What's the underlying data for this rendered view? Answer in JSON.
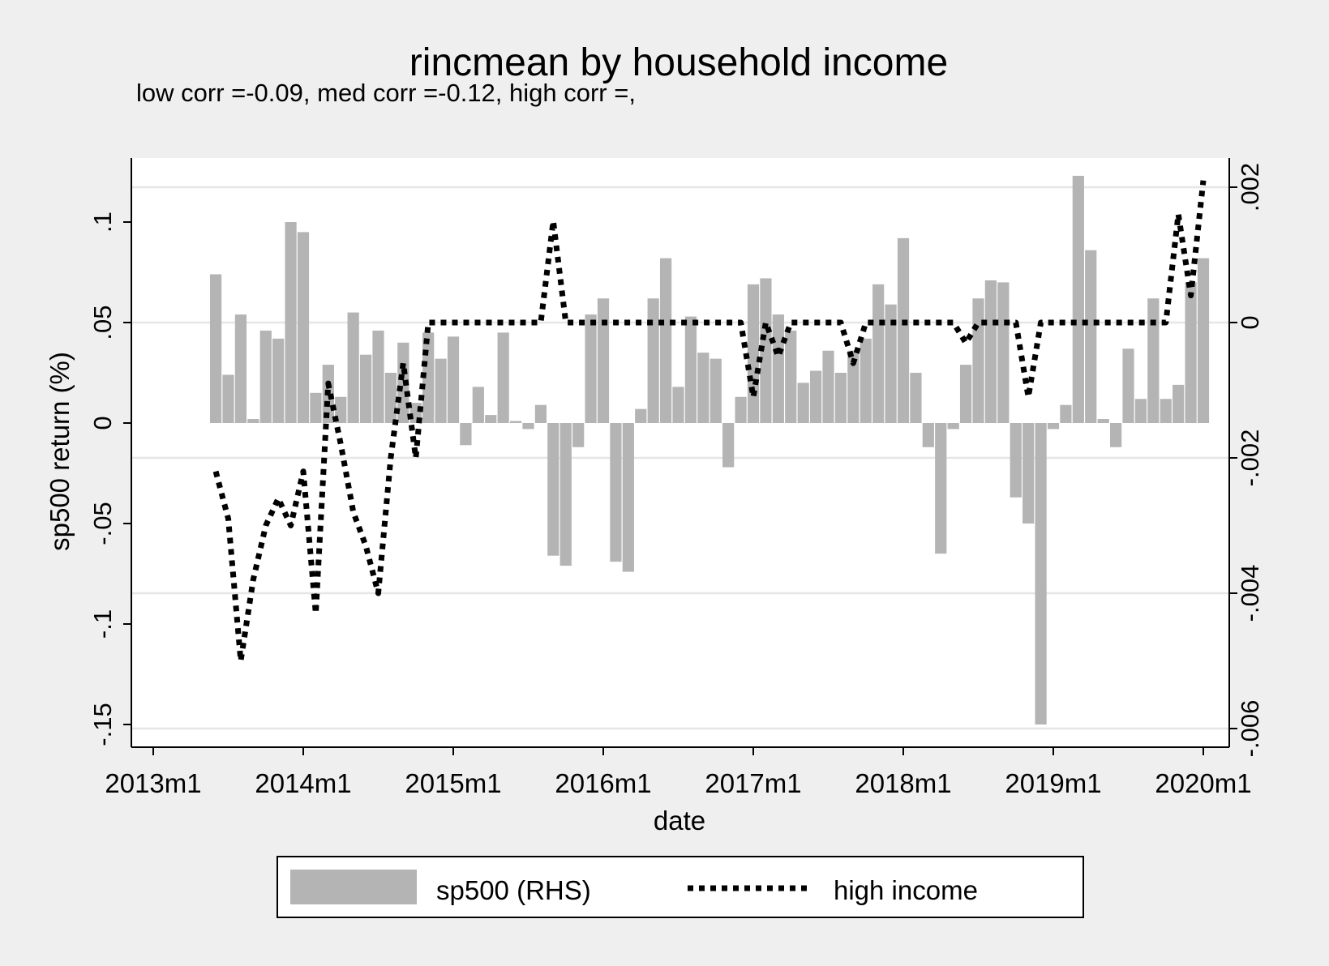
{
  "chart_data": {
    "type": "bar",
    "title": "rincmean by household income",
    "subtitle": "low corr =-0.09, med corr =-0.12, high corr =,",
    "xlabel": "date",
    "ylabel": "sp500 return (%)",
    "x_ticks": [
      "2013m1",
      "2014m1",
      "2015m1",
      "2016m1",
      "2017m1",
      "2018m1",
      "2019m1",
      "2020m1"
    ],
    "y_ticks_left": [
      "-.15",
      "-.1",
      "-.05",
      "0",
      ".05",
      ".1"
    ],
    "y_ticks_right": [
      "-.006",
      "-.004",
      "-.002",
      "0",
      ".002"
    ],
    "ylim_left": [
      -0.15,
      0.12
    ],
    "ylim_right": [
      -0.006,
      0.002
    ],
    "xlim": [
      "2013-01",
      "2020-01"
    ],
    "grid": true,
    "legend_position": "bottom",
    "legend": [
      "sp500 (RHS)",
      "high income"
    ],
    "colors": {
      "bars": "#b4b4b4",
      "line": "#000000",
      "background": "#efefef",
      "plot": "#ffffff",
      "grid": "#e6e6e6"
    },
    "series": [
      {
        "name": "sp500 (RHS)",
        "axis": "left",
        "style": "bar",
        "x_start": "2013-06",
        "dates": [
          "2013-06",
          "2013-07",
          "2013-08",
          "2013-09",
          "2013-10",
          "2013-11",
          "2013-12",
          "2014-01",
          "2014-02",
          "2014-03",
          "2014-04",
          "2014-05",
          "2014-06",
          "2014-07",
          "2014-08",
          "2014-09",
          "2014-10",
          "2014-11",
          "2014-12",
          "2015-01",
          "2015-02",
          "2015-03",
          "2015-04",
          "2015-05",
          "2015-06",
          "2015-07",
          "2015-08",
          "2015-09",
          "2015-10",
          "2015-11",
          "2015-12",
          "2016-01",
          "2016-02",
          "2016-03",
          "2016-04",
          "2016-05",
          "2016-06",
          "2016-07",
          "2016-08",
          "2016-09",
          "2016-10",
          "2016-11",
          "2016-12",
          "2017-01",
          "2017-02",
          "2017-03",
          "2017-04",
          "2017-05",
          "2017-06",
          "2017-07",
          "2017-08",
          "2017-09",
          "2017-10",
          "2017-11",
          "2017-12",
          "2018-01",
          "2018-02",
          "2018-03",
          "2018-04",
          "2018-05",
          "2018-06",
          "2018-07",
          "2018-08",
          "2018-09",
          "2018-10",
          "2018-11",
          "2018-12",
          "2019-01",
          "2019-02",
          "2019-03",
          "2019-04",
          "2019-05",
          "2019-06",
          "2019-07",
          "2019-08",
          "2019-09",
          "2019-10",
          "2019-11",
          "2019-12",
          "2020-01"
        ],
        "values": [
          0.074,
          0.024,
          0.054,
          0.002,
          0.046,
          0.042,
          0.1,
          0.095,
          0.015,
          0.029,
          0.013,
          0.055,
          0.034,
          0.046,
          0.025,
          0.04,
          0.01,
          0.045,
          0.032,
          0.043,
          -0.011,
          0.018,
          0.004,
          0.045,
          0.001,
          -0.003,
          0.009,
          -0.066,
          -0.071,
          -0.012,
          0.054,
          0.062,
          -0.069,
          -0.074,
          0.007,
          0.062,
          0.082,
          0.018,
          0.053,
          0.035,
          0.032,
          -0.022,
          0.013,
          0.069,
          0.072,
          0.054,
          0.046,
          0.02,
          0.026,
          0.036,
          0.025,
          0.036,
          0.042,
          0.069,
          0.059,
          0.092,
          0.025,
          -0.012,
          -0.065,
          -0.003,
          0.029,
          0.062,
          0.071,
          0.07,
          -0.037,
          -0.05,
          -0.15,
          -0.003,
          0.009,
          0.123,
          0.086,
          0.002,
          -0.012,
          0.037,
          0.012,
          0.062,
          0.012,
          0.019,
          0.07,
          0.082
        ]
      },
      {
        "name": "high income",
        "axis": "right",
        "style": "dotted-line",
        "dates": [
          "2013-06",
          "2013-07",
          "2013-08",
          "2013-09",
          "2013-10",
          "2013-11",
          "2013-12",
          "2014-01",
          "2014-02",
          "2014-03",
          "2014-04",
          "2014-05",
          "2014-06",
          "2014-07",
          "2014-08",
          "2014-09",
          "2014-10",
          "2014-11",
          "2014-12",
          "2015-01",
          "2015-02",
          "2015-03",
          "2015-04",
          "2015-05",
          "2015-06",
          "2015-07",
          "2015-08",
          "2015-09",
          "2015-10",
          "2015-11",
          "2015-12",
          "2016-01",
          "2016-02",
          "2016-03",
          "2016-04",
          "2016-05",
          "2016-06",
          "2016-07",
          "2016-08",
          "2016-09",
          "2016-10",
          "2016-11",
          "2016-12",
          "2017-01",
          "2017-02",
          "2017-03",
          "2017-04",
          "2017-05",
          "2017-06",
          "2017-07",
          "2017-08",
          "2017-09",
          "2017-10",
          "2017-11",
          "2017-12",
          "2018-01",
          "2018-02",
          "2018-03",
          "2018-04",
          "2018-05",
          "2018-06",
          "2018-07",
          "2018-08",
          "2018-09",
          "2018-10",
          "2018-11",
          "2018-12",
          "2019-01",
          "2019-02",
          "2019-03",
          "2019-04",
          "2019-05",
          "2019-06",
          "2019-07",
          "2019-08",
          "2019-09",
          "2019-10",
          "2019-11",
          "2019-12",
          "2020-01"
        ],
        "values": [
          -0.0022,
          -0.0029,
          -0.005,
          -0.0038,
          -0.003,
          -0.0026,
          -0.003,
          -0.0022,
          -0.0043,
          -0.0009,
          -0.0018,
          -0.0028,
          -0.0033,
          -0.004,
          -0.002,
          -0.0006,
          -0.002,
          0,
          0,
          0,
          0,
          0,
          0,
          0,
          0,
          0,
          0,
          0.0015,
          0,
          0,
          0,
          0,
          0,
          0,
          0,
          0,
          0,
          0,
          0,
          0,
          0,
          0,
          0,
          -0.0011,
          0,
          -0.0005,
          0,
          0,
          0,
          0,
          0,
          -0.0006,
          0,
          0,
          0,
          0,
          0,
          0,
          0,
          0,
          -0.0003,
          0,
          0,
          0,
          0,
          -0.0011,
          0,
          0,
          0,
          0,
          0,
          0,
          0,
          0,
          0,
          0,
          0,
          0.0016,
          0.0004,
          0.0021
        ]
      }
    ]
  }
}
